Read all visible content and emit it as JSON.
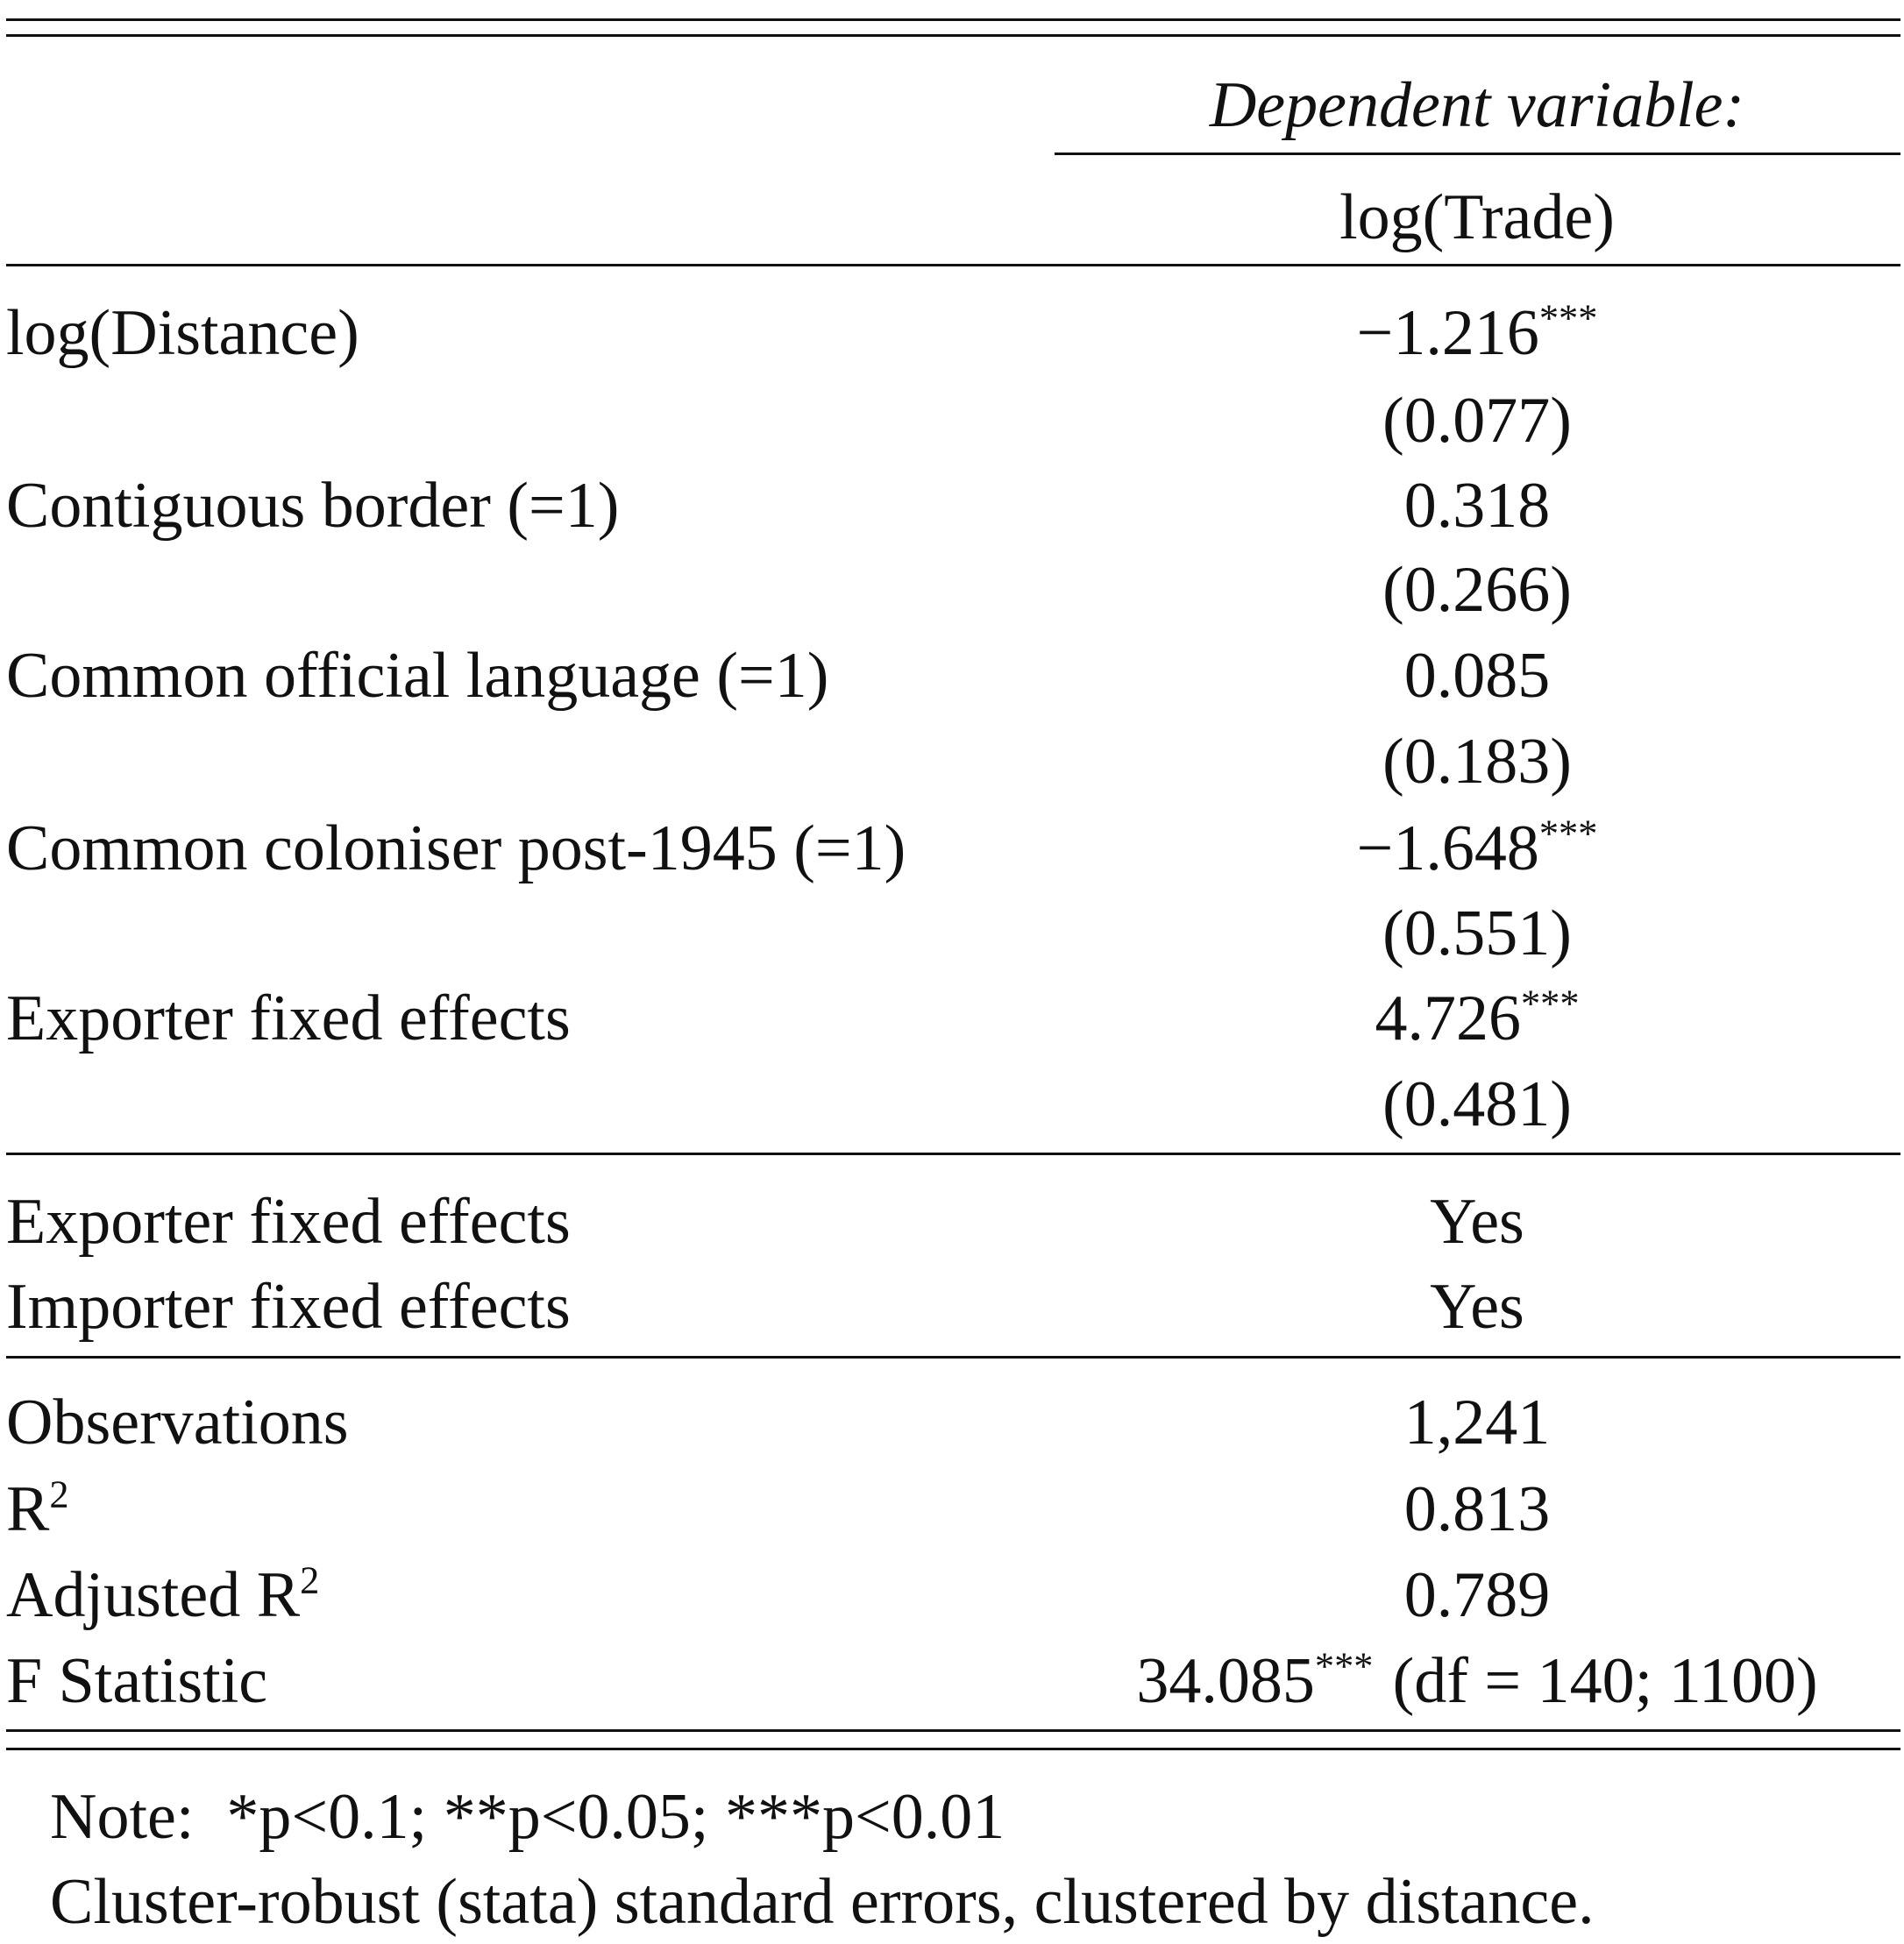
{
  "header": {
    "dependent_variable": "Dependent variable:",
    "model": "log(Trade)"
  },
  "coefficients": [
    {
      "label": "log(Distance)",
      "estimate": "−1.216",
      "stars": "***",
      "se": "(0.077)"
    },
    {
      "label": "Contiguous border (=1)",
      "estimate": "0.318",
      "se": "(0.266)"
    },
    {
      "label": "Common official language (=1)",
      "estimate": "0.085",
      "se": "(0.183)"
    },
    {
      "label": "Common coloniser post-1945 (=1)",
      "estimate": "−1.648",
      "stars": "***",
      "se": "(0.551)"
    },
    {
      "label": "Exporter fixed effects",
      "estimate": "4.726",
      "stars": "***",
      "se": "(0.481)"
    }
  ],
  "fixed_effects": [
    {
      "label": "Exporter fixed effects",
      "value": "Yes"
    },
    {
      "label": "Importer fixed effects",
      "value": "Yes"
    }
  ],
  "statistics": [
    {
      "label": "Observations",
      "value": "1,241"
    },
    {
      "label": "R",
      "label_sup": "2",
      "value": "0.813"
    },
    {
      "label": "Adjusted R",
      "label_sup": "2",
      "value": "0.789"
    },
    {
      "label": "F Statistic",
      "value": "34.085",
      "stars": "***",
      "detail": "(df = 140; 1100)"
    }
  ],
  "notes": [
    "Note:  *p<0.1; **p<0.05; ***p<0.01",
    "Cluster-robust (stata) standard errors, clustered by distance."
  ]
}
